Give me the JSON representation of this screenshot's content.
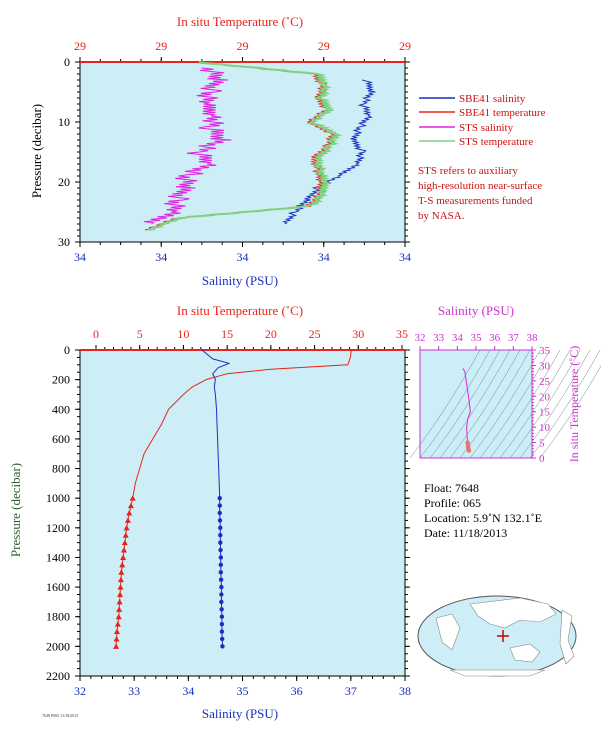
{
  "top_panel": {
    "xlabel_top": "In situ Temperature (˚C)",
    "xlabel_bottom": "Salinity (PSU)",
    "ylabel": "Pressure (decibar)",
    "top_ticks": [
      "29",
      "29",
      "29",
      "29",
      "29"
    ],
    "bottom_ticks": [
      "34",
      "34",
      "34",
      "34",
      "34"
    ],
    "y_ticks": [
      "0",
      "10",
      "20",
      "30"
    ],
    "legend": [
      {
        "label": "SBE41 salinity",
        "color": "#1a2fbf"
      },
      {
        "label": "SBE41 temperature",
        "color": "#e8231b"
      },
      {
        "label": "STS salinity",
        "color": "#e020e0"
      },
      {
        "label": "STS temperature",
        "color": "#7fd27f"
      }
    ],
    "note": [
      "STS refers to auxiliary",
      "high-resolution near-surface",
      "T-S measurements funded",
      "by NASA."
    ]
  },
  "main_panel": {
    "xlabel_top": "In situ Temperature (˚C)",
    "xlabel_bottom": "Salinity (PSU)",
    "ylabel": "Pressure (decibar)",
    "top_ticks": [
      "0",
      "5",
      "10",
      "15",
      "20",
      "25",
      "30",
      "35"
    ],
    "bottom_ticks": [
      "32",
      "33",
      "34",
      "35",
      "36",
      "37",
      "38"
    ],
    "y_ticks": [
      "0",
      "200",
      "400",
      "600",
      "800",
      "1000",
      "1200",
      "1400",
      "1600",
      "1800",
      "2000",
      "2200"
    ]
  },
  "ts_panel": {
    "xlabel": "Salinity (PSU)",
    "ylabel": "In situ Temperature (˚C)",
    "x_ticks": [
      "32",
      "33",
      "34",
      "35",
      "36",
      "37",
      "38"
    ],
    "y_ticks": [
      "0",
      "5",
      "10",
      "15",
      "20",
      "25",
      "30",
      "35"
    ]
  },
  "info": {
    "float_line": "Float:  7648",
    "profile_line": "Profile:  065",
    "location_line": "Location:  5.9˚N  132.1˚E",
    "date_line": "Date:  11/18/2013"
  },
  "footer_small": "7648  P065  11/18/2013",
  "colors": {
    "plot_bg": "#cdeef7",
    "temperature": "#e8231b",
    "salinity": "#1a2fbf",
    "sts_salinity": "#e020e0",
    "sts_temperature": "#7fd27f",
    "axis_green": "#2e5e2e",
    "ts_magenta": "#cc33cc"
  },
  "chart_data": [
    {
      "type": "line",
      "title": "",
      "xlabel": "Salinity (PSU)",
      "x2label": "In situ Temperature (˚C)",
      "ylabel": "Pressure (decibar)",
      "ylim": [
        30,
        0
      ],
      "series": [
        {
          "name": "SBE41 salinity",
          "x_units": "PSU (relative)",
          "y": [
            3,
            5,
            7,
            9,
            11,
            13,
            15,
            17,
            19,
            21,
            23,
            25,
            27
          ],
          "x": [
            0.88,
            0.9,
            0.87,
            0.89,
            0.86,
            0.84,
            0.87,
            0.85,
            0.8,
            0.73,
            0.7,
            0.66,
            0.63
          ]
        },
        {
          "name": "SBE41 temperature",
          "y": [
            0,
            2,
            4,
            6,
            8,
            10,
            12,
            14,
            16,
            18,
            20,
            22,
            24,
            26,
            28
          ],
          "x": [
            0.35,
            0.72,
            0.75,
            0.73,
            0.76,
            0.7,
            0.78,
            0.76,
            0.72,
            0.73,
            0.74,
            0.74,
            0.7,
            0.3,
            0.2
          ]
        },
        {
          "name": "STS salinity",
          "y": [
            1,
            3,
            5,
            7,
            9,
            11,
            13,
            15,
            17,
            19,
            21,
            23,
            25,
            27
          ],
          "x": [
            0.4,
            0.42,
            0.4,
            0.38,
            0.42,
            0.4,
            0.44,
            0.36,
            0.4,
            0.33,
            0.32,
            0.3,
            0.28,
            0.22
          ]
        },
        {
          "name": "STS temperature",
          "y": [
            0,
            2,
            4,
            6,
            8,
            10,
            12,
            14,
            16,
            18,
            20,
            22,
            24,
            26,
            28
          ],
          "x": [
            0.36,
            0.73,
            0.76,
            0.74,
            0.77,
            0.71,
            0.79,
            0.77,
            0.73,
            0.74,
            0.75,
            0.75,
            0.71,
            0.31,
            0.21
          ]
        }
      ]
    },
    {
      "type": "line",
      "title": "",
      "xlabel": "Salinity (PSU)",
      "x2label": "In situ Temperature (˚C)",
      "ylabel": "Pressure (decibar)",
      "xlim": [
        32,
        38
      ],
      "x2lim": [
        0,
        35
      ],
      "ylim": [
        2200,
        0
      ],
      "series": [
        {
          "name": "temperature",
          "pressure": [
            0,
            50,
            100,
            130,
            160,
            200,
            250,
            300,
            400,
            500,
            600,
            700,
            800,
            900,
            1000,
            1100,
            1200,
            1300,
            1400,
            1500,
            1600,
            1700,
            1800,
            1900,
            2000
          ],
          "values": [
            29.2,
            29.1,
            28.8,
            20.0,
            15.0,
            12.6,
            11.0,
            10.0,
            8.3,
            7.5,
            6.5,
            5.5,
            5.0,
            4.5,
            4.2,
            3.8,
            3.5,
            3.3,
            3.1,
            2.9,
            2.8,
            2.7,
            2.6,
            2.4,
            2.3
          ]
        },
        {
          "name": "salinity",
          "pressure": [
            0,
            30,
            60,
            90,
            120,
            160,
            200,
            250,
            300,
            400,
            500,
            600,
            700,
            800,
            900,
            1000,
            1100,
            1200,
            1300,
            1400,
            1500,
            1600,
            1700,
            1800,
            1900,
            2000
          ],
          "values": [
            34.25,
            34.35,
            34.45,
            34.75,
            34.55,
            34.45,
            34.5,
            34.48,
            34.5,
            34.52,
            34.53,
            34.54,
            34.55,
            34.56,
            34.57,
            34.58,
            34.58,
            34.59,
            34.59,
            34.6,
            34.6,
            34.61,
            34.61,
            34.62,
            34.62,
            34.63
          ]
        }
      ]
    },
    {
      "type": "scatter",
      "title": "",
      "xlabel": "Salinity (PSU)",
      "ylabel": "In situ Temperature (˚C)",
      "xlim": [
        32,
        38
      ],
      "ylim": [
        0,
        35
      ],
      "series": [
        {
          "name": "T-S",
          "x": [
            34.3,
            34.4,
            34.6,
            34.7,
            34.55,
            34.5,
            34.52,
            34.53,
            34.55,
            34.57,
            34.58,
            34.6,
            34.62
          ],
          "y": [
            29.0,
            28.0,
            20.0,
            15.0,
            12.5,
            10.0,
            8.0,
            6.5,
            5.0,
            4.2,
            3.5,
            3.0,
            2.4
          ]
        }
      ]
    }
  ]
}
